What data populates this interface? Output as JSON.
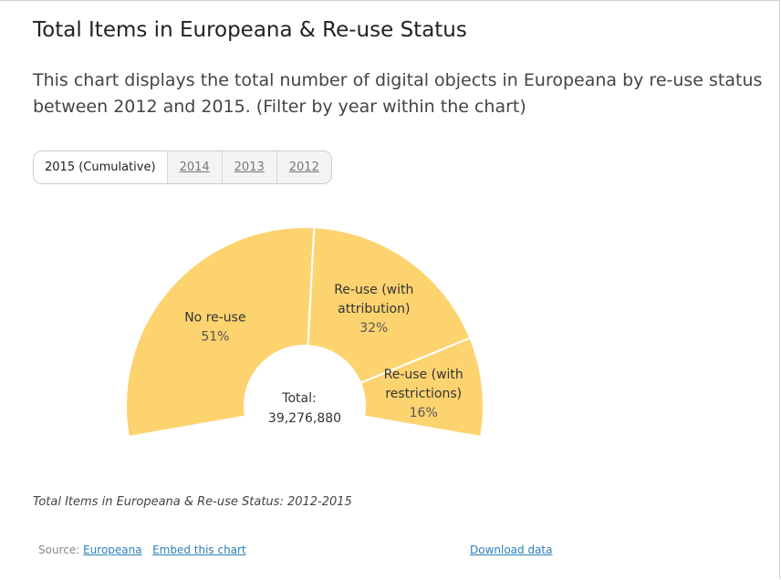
{
  "header": {
    "title": "Total Items in Europeana & Re-use Status",
    "subtitle": "This chart displays the total number of digital objects in Europeana by re-use status between 2012 and 2015. (Filter by year within the chart)"
  },
  "tabs": [
    {
      "label": "2015 (Cumulative)",
      "active": true
    },
    {
      "label": "2014",
      "active": false
    },
    {
      "label": "2013",
      "active": false
    },
    {
      "label": "2012",
      "active": false
    }
  ],
  "chart_data": {
    "type": "pie",
    "variant": "semi-donut",
    "categories": [
      "No re-use",
      "Re-use (with attribution)",
      "Re-use (with restrictions)"
    ],
    "label_lines": [
      [
        "No re-use"
      ],
      [
        "Re-use (with",
        "attribution)"
      ],
      [
        "Re-use (with",
        "restrictions)"
      ]
    ],
    "values": [
      51,
      32,
      16
    ],
    "value_labels": [
      "51%",
      "32%",
      "16%"
    ],
    "center_label": "Total:",
    "center_value": "39,276,880",
    "color": "#fdd370",
    "legend": "none"
  },
  "caption": "Total Items in Europeana & Re-use Status: 2012-2015",
  "footer": {
    "source_prefix": "Source:",
    "source_link": "Europeana",
    "embed_link": "Embed this chart",
    "download_link": "Download data"
  }
}
